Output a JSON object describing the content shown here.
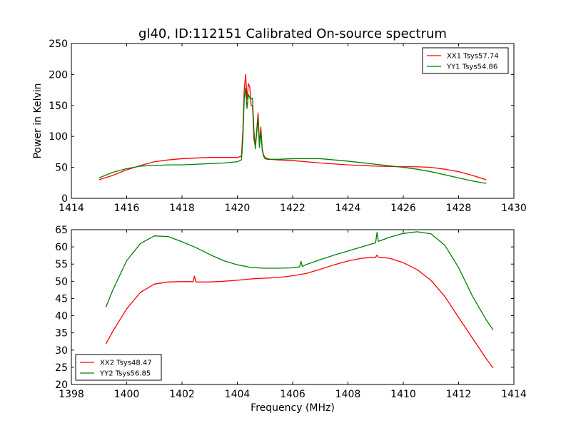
{
  "title": "gl40, ID:112151 Calibrated On-source spectrum",
  "chart_data": [
    {
      "type": "line",
      "panel": "top",
      "ylabel": "Power in Kelvin",
      "xlabel": "",
      "xlim": [
        1414,
        1430
      ],
      "ylim": [
        0,
        250
      ],
      "xticks": [
        1414,
        1416,
        1418,
        1420,
        1422,
        1424,
        1426,
        1428,
        1430
      ],
      "yticks": [
        0,
        50,
        100,
        150,
        200,
        250
      ],
      "legend_position": "top-right",
      "series": [
        {
          "name": "XX1 Tsys57.74",
          "color": "#ff0000",
          "x": [
            1415.0,
            1415.5,
            1416.0,
            1416.5,
            1417.0,
            1417.5,
            1418.0,
            1418.5,
            1419.0,
            1419.5,
            1420.0,
            1420.15,
            1420.2,
            1420.25,
            1420.3,
            1420.35,
            1420.4,
            1420.45,
            1420.5,
            1420.55,
            1420.6,
            1420.65,
            1420.7,
            1420.75,
            1420.8,
            1420.85,
            1420.9,
            1420.95,
            1421.0,
            1421.1,
            1421.2,
            1421.5,
            1422.0,
            1423.0,
            1424.0,
            1425.0,
            1426.0,
            1426.5,
            1427.0,
            1427.5,
            1428.0,
            1428.5,
            1429.0
          ],
          "values": [
            30,
            37,
            46,
            53,
            59,
            62,
            64,
            65,
            66,
            66,
            66,
            68,
            110,
            175,
            200,
            160,
            185,
            180,
            150,
            150,
            95,
            85,
            110,
            138,
            88,
            115,
            80,
            70,
            66,
            64,
            63,
            62,
            61,
            57,
            54,
            52,
            51,
            51,
            50,
            47,
            43,
            37,
            30
          ]
        },
        {
          "name": "YY1 Tsys54.86",
          "color": "#008000",
          "x": [
            1415.0,
            1415.5,
            1416.0,
            1416.5,
            1417.0,
            1417.5,
            1418.0,
            1418.5,
            1419.0,
            1419.5,
            1420.0,
            1420.15,
            1420.2,
            1420.25,
            1420.3,
            1420.35,
            1420.4,
            1420.45,
            1420.5,
            1420.55,
            1420.6,
            1420.65,
            1420.7,
            1420.75,
            1420.8,
            1420.85,
            1420.9,
            1420.95,
            1421.0,
            1421.1,
            1421.2,
            1421.5,
            1422.0,
            1423.0,
            1424.0,
            1425.0,
            1426.0,
            1426.5,
            1427.0,
            1427.5,
            1428.0,
            1428.5,
            1429.0
          ],
          "values": [
            33,
            42,
            48,
            52,
            53,
            54,
            54,
            55,
            56,
            57,
            59,
            62,
            95,
            160,
            178,
            145,
            168,
            162,
            160,
            162,
            110,
            80,
            105,
            130,
            82,
            108,
            78,
            68,
            64,
            63,
            63,
            63,
            64,
            64,
            60,
            55,
            50,
            47,
            43,
            38,
            33,
            28,
            24
          ]
        }
      ]
    },
    {
      "type": "line",
      "panel": "bottom",
      "ylabel": "",
      "xlabel": "Frequency (MHz)",
      "xlim": [
        1398,
        1414
      ],
      "ylim": [
        20,
        65
      ],
      "xticks": [
        1398,
        1400,
        1402,
        1404,
        1406,
        1408,
        1410,
        1412,
        1414
      ],
      "yticks": [
        20,
        25,
        30,
        35,
        40,
        45,
        50,
        55,
        60,
        65
      ],
      "legend_position": "bottom-left",
      "series": [
        {
          "name": "XX2 Tsys48.47",
          "color": "#ff0000",
          "x": [
            1399.25,
            1399.5,
            1400.0,
            1400.5,
            1401.0,
            1401.5,
            1402.0,
            1402.4,
            1402.45,
            1402.5,
            1403.0,
            1403.5,
            1404.0,
            1404.5,
            1405.0,
            1405.5,
            1406.0,
            1406.5,
            1407.0,
            1407.5,
            1408.0,
            1408.5,
            1409.0,
            1409.05,
            1409.1,
            1409.5,
            1410.0,
            1410.5,
            1411.0,
            1411.5,
            1412.0,
            1412.5,
            1413.0,
            1413.25
          ],
          "values": [
            31.8,
            35.5,
            42.0,
            46.8,
            49.2,
            49.8,
            49.9,
            49.9,
            51.5,
            49.8,
            49.8,
            50.0,
            50.3,
            50.7,
            50.9,
            51.1,
            51.6,
            52.3,
            53.5,
            54.8,
            55.9,
            56.7,
            57.0,
            57.6,
            57.0,
            56.7,
            55.4,
            53.4,
            50.3,
            45.6,
            39.5,
            33.5,
            27.5,
            24.8
          ]
        },
        {
          "name": "YY2 Tsys56.85",
          "color": "#008000",
          "x": [
            1399.25,
            1399.5,
            1400.0,
            1400.5,
            1401.0,
            1401.5,
            1402.0,
            1402.5,
            1403.0,
            1403.5,
            1404.0,
            1404.5,
            1405.0,
            1405.5,
            1406.0,
            1406.25,
            1406.3,
            1406.35,
            1406.5,
            1407.0,
            1407.5,
            1408.0,
            1408.5,
            1409.0,
            1409.05,
            1409.1,
            1409.5,
            1410.0,
            1410.5,
            1411.0,
            1411.5,
            1412.0,
            1412.5,
            1413.0,
            1413.25
          ],
          "values": [
            42.5,
            47.5,
            56.0,
            61.0,
            63.2,
            63.0,
            61.5,
            59.8,
            57.8,
            56.0,
            54.8,
            54.0,
            53.8,
            53.8,
            53.9,
            54.2,
            55.8,
            54.3,
            54.9,
            56.3,
            57.6,
            58.8,
            60.0,
            61.2,
            64.2,
            61.6,
            62.8,
            63.9,
            64.4,
            63.8,
            60.5,
            54.0,
            45.7,
            38.8,
            35.8
          ]
        }
      ]
    }
  ]
}
